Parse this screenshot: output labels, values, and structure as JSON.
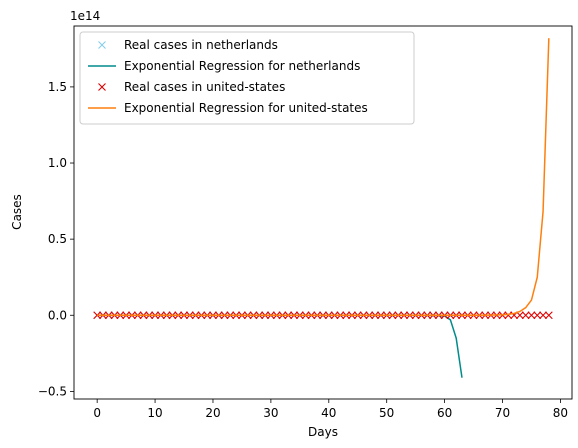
{
  "chart_data": {
    "type": "line",
    "title": "",
    "xlabel": "Days",
    "ylabel": "Cases",
    "y_offset_text": "1e14",
    "xlim": [
      -4,
      82
    ],
    "ylim": [
      -0.55,
      1.9
    ],
    "y_unit_scale": 100000000000000.0,
    "x_ticks": [
      0,
      10,
      20,
      30,
      40,
      50,
      60,
      70,
      80
    ],
    "y_ticks": [
      -0.5,
      0.0,
      0.5,
      1.0,
      1.5
    ],
    "y_tick_labels": [
      "−0.5",
      "0.0",
      "0.5",
      "1.0",
      "1.5"
    ],
    "grid": false,
    "legend_position": "top-left",
    "series": [
      {
        "name": "Real cases in netherlands",
        "style": "marker",
        "marker": "x",
        "color": "#87ceeb",
        "x": [
          0,
          1,
          2,
          3,
          4,
          5,
          6,
          7,
          8,
          9,
          10,
          11,
          12,
          13,
          14,
          15,
          16,
          17,
          18,
          19,
          20,
          21,
          22,
          23,
          24,
          25,
          26,
          27,
          28,
          29,
          30,
          31,
          32,
          33,
          34,
          35,
          36,
          37,
          38,
          39,
          40,
          41,
          42,
          43,
          44,
          45,
          46,
          47,
          48,
          49,
          50,
          51,
          52,
          53,
          54,
          55,
          56,
          57,
          58,
          59,
          60,
          61,
          62,
          63
        ],
        "y": [
          0,
          0,
          0,
          0,
          0,
          0,
          0,
          0,
          0,
          0,
          0,
          0,
          0,
          0,
          0,
          0,
          0,
          0,
          0,
          0,
          0,
          0,
          0,
          0,
          0,
          0,
          0,
          0,
          0,
          0,
          0,
          0,
          0,
          0,
          0,
          0,
          0,
          0,
          0,
          0,
          0,
          0,
          0,
          0,
          0,
          0,
          0,
          0,
          0,
          0,
          0,
          0,
          0,
          0,
          0,
          0,
          0,
          0,
          0,
          0,
          0,
          0,
          0,
          0
        ]
      },
      {
        "name": "Exponential Regression for netherlands",
        "style": "line",
        "color": "#008b8b",
        "x": [
          0,
          10,
          20,
          30,
          40,
          50,
          55,
          57,
          58,
          59,
          60,
          61,
          62,
          63
        ],
        "y": [
          0,
          0,
          0,
          0,
          0,
          0,
          0,
          -0.0005,
          -0.001,
          -0.002,
          -0.005,
          -0.03,
          -0.15,
          -0.41
        ]
      },
      {
        "name": "Real cases in united-states",
        "style": "marker",
        "marker": "x",
        "color": "#e00000",
        "x": [
          0,
          1,
          2,
          3,
          4,
          5,
          6,
          7,
          8,
          9,
          10,
          11,
          12,
          13,
          14,
          15,
          16,
          17,
          18,
          19,
          20,
          21,
          22,
          23,
          24,
          25,
          26,
          27,
          28,
          29,
          30,
          31,
          32,
          33,
          34,
          35,
          36,
          37,
          38,
          39,
          40,
          41,
          42,
          43,
          44,
          45,
          46,
          47,
          48,
          49,
          50,
          51,
          52,
          53,
          54,
          55,
          56,
          57,
          58,
          59,
          60,
          61,
          62,
          63,
          64,
          65,
          66,
          67,
          68,
          69,
          70,
          71,
          72,
          73,
          74,
          75,
          76,
          77,
          78
        ],
        "y": [
          0,
          0,
          0,
          0,
          0,
          0,
          0,
          0,
          0,
          0,
          0,
          0,
          0,
          0,
          0,
          0,
          0,
          0,
          0,
          0,
          0,
          0,
          0,
          0,
          0,
          0,
          0,
          0,
          0,
          0,
          0,
          0,
          0,
          0,
          0,
          0,
          0,
          0,
          0,
          0,
          0,
          0,
          0,
          0,
          0,
          0,
          0,
          0,
          0,
          0,
          0,
          0,
          0,
          0,
          0,
          0,
          0,
          0,
          0,
          0,
          0,
          0,
          0,
          0,
          0,
          0,
          0,
          0,
          0,
          0,
          0,
          0,
          0,
          0,
          0,
          0,
          0,
          0,
          0
        ]
      },
      {
        "name": "Exponential Regression for united-states",
        "style": "line",
        "color": "#ff7f0e",
        "x": [
          0,
          10,
          20,
          30,
          40,
          50,
          60,
          65,
          68,
          70,
          71,
          72,
          73,
          74,
          75,
          76,
          77,
          78
        ],
        "y": [
          0,
          0,
          0,
          0,
          0,
          0,
          0,
          0.0005,
          0.001,
          0.003,
          0.006,
          0.012,
          0.025,
          0.05,
          0.1,
          0.25,
          0.68,
          1.82
        ]
      }
    ]
  }
}
